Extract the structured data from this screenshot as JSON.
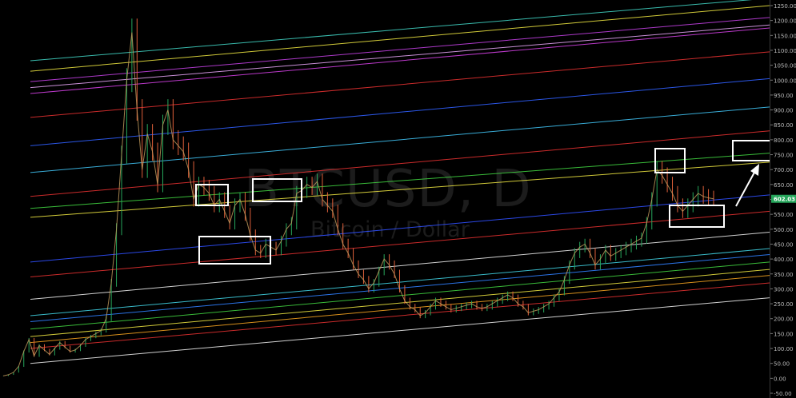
{
  "watermark": {
    "symbol": "BTCUSD, D",
    "description": "Bitcoin / Dollar"
  },
  "price_badge": {
    "text": "602.03",
    "color": "#26a65b"
  },
  "chart_data": {
    "type": "line",
    "title": "",
    "xlabel": "",
    "ylabel": "",
    "ylim": [
      -50,
      1260
    ],
    "y_ticks": [
      "1250.00",
      "1200.00",
      "1150.00",
      "1100.00",
      "1050.00",
      "1000.00",
      "950.00",
      "900.00",
      "850.00",
      "800.00",
      "750.00",
      "700.00",
      "650.00",
      "600.00",
      "550.00",
      "500.00",
      "450.00",
      "400.00",
      "350.00",
      "300.00",
      "250.00",
      "200.00",
      "150.00",
      "100.00",
      "50.00",
      "0.00",
      "-50.00"
    ],
    "grid": false,
    "candle_colors": {
      "up": "#26a65b",
      "down": "#e0603a"
    },
    "price_series": {
      "name": "",
      "values": [
        8,
        12,
        20,
        40,
        90,
        130,
        75,
        110,
        95,
        80,
        100,
        120,
        105,
        90,
        95,
        110,
        130,
        140,
        150,
        160,
        200,
        320,
        500,
        750,
        1000,
        1160,
        900,
        700,
        820,
        760,
        650,
        850,
        900,
        800,
        780,
        760,
        700,
        600,
        650,
        640,
        620,
        580,
        600,
        560,
        520,
        580,
        600,
        550,
        480,
        430,
        420,
        450,
        440,
        430,
        460,
        500,
        520,
        620,
        630,
        650,
        640,
        660,
        600,
        580,
        560,
        500,
        450,
        420,
        380,
        350,
        330,
        300,
        320,
        360,
        400,
        380,
        350,
        300,
        260,
        240,
        230,
        210,
        220,
        240,
        260,
        250,
        240,
        230,
        235,
        240,
        245,
        250,
        240,
        235,
        240,
        250,
        260,
        270,
        280,
        270,
        250,
        240,
        220,
        225,
        230,
        240,
        250,
        270,
        290,
        330,
        380,
        420,
        440,
        450,
        420,
        380,
        400,
        430,
        410,
        420,
        430,
        440,
        450,
        460,
        470,
        520,
        600,
        700,
        680,
        650,
        620,
        580,
        560,
        580,
        600,
        620,
        610,
        605,
        602
      ]
    },
    "trend_lines": [
      {
        "color": "#e8e8e8",
        "y0": 50,
        "y1": 270
      },
      {
        "color": "#e03030",
        "y0": 100,
        "y1": 320
      },
      {
        "color": "#f0a020",
        "y0": 120,
        "y1": 345
      },
      {
        "color": "#e8e040",
        "y0": 140,
        "y1": 365
      },
      {
        "color": "#40d040",
        "y0": 165,
        "y1": 390
      },
      {
        "color": "#3080ff",
        "y0": 190,
        "y1": 415
      },
      {
        "color": "#40d0e0",
        "y0": 210,
        "y1": 435
      },
      {
        "color": "#e8e8e8",
        "y0": 265,
        "y1": 490
      },
      {
        "color": "#e03030",
        "y0": 340,
        "y1": 560
      },
      {
        "color": "#3050ff",
        "y0": 390,
        "y1": 615
      },
      {
        "color": "#e8e040",
        "y0": 540,
        "y1": 725
      },
      {
        "color": "#40d040",
        "y0": 570,
        "y1": 755
      },
      {
        "color": "#e03030",
        "y0": 610,
        "y1": 830
      },
      {
        "color": "#40c0f0",
        "y0": 690,
        "y1": 910
      },
      {
        "color": "#3060ff",
        "y0": 780,
        "y1": 1005
      },
      {
        "color": "#e03030",
        "y0": 875,
        "y1": 1095
      },
      {
        "color": "#d040e0",
        "y0": 955,
        "y1": 1175
      },
      {
        "color": "#e0a0f0",
        "y0": 975,
        "y1": 1185
      },
      {
        "color": "#c040e0",
        "y0": 995,
        "y1": 1210
      },
      {
        "color": "#e8e040",
        "y0": 1030,
        "y1": 1250
      },
      {
        "color": "#40d0c0",
        "y0": 1065,
        "y1": 1275
      }
    ]
  }
}
